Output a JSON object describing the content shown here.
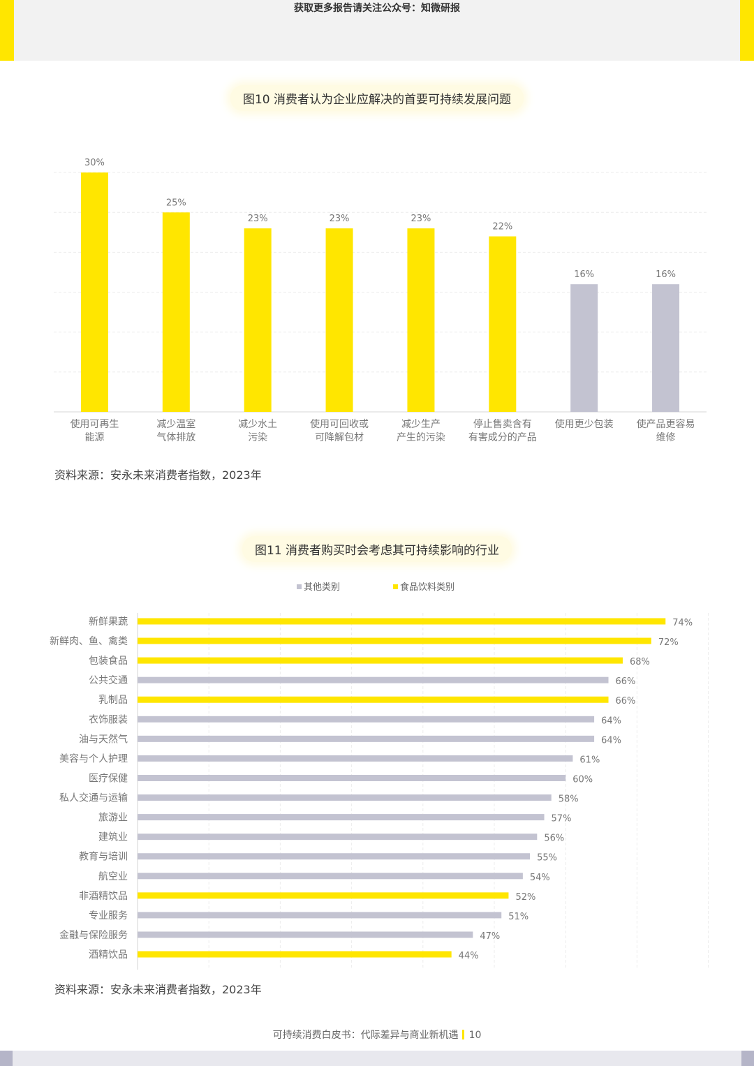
{
  "header": {
    "notice": "获取更多报告请关注公众号：知微研报"
  },
  "colors": {
    "accent": "#ffe600",
    "grey": "#c3c3d1",
    "band": "#f2f2f2"
  },
  "figure10": {
    "title": "图10 消费者认为企业应解决的首要可持续发展问题",
    "source": "资料来源：安永未来消费者指数，2023年"
  },
  "figure11": {
    "title": "图11 消费者购买时会考虑其可持续影响的行业",
    "legend": {
      "other": "其他类别",
      "food": "食品饮料类别"
    },
    "source": "资料来源：安永未来消费者指数，2023年"
  },
  "footer": {
    "text": "可持续消费白皮书：代际差异与商业新机遇",
    "page": "10"
  },
  "chart_data": [
    {
      "type": "bar",
      "categories": [
        [
          "使用可再生",
          "能源"
        ],
        [
          "减少温室",
          "气体排放"
        ],
        [
          "减少水土",
          "污染"
        ],
        [
          "使用可回收或",
          "可降解包材"
        ],
        [
          "减少生产",
          "产生的污染"
        ],
        [
          "停止售卖含有",
          "有害成分的产品"
        ],
        [
          "使用更少包装"
        ],
        [
          "使产品更容易",
          "维修"
        ]
      ],
      "values": [
        30,
        25,
        23,
        23,
        23,
        22,
        16,
        16
      ],
      "value_labels": [
        "30%",
        "25%",
        "23%",
        "23%",
        "23%",
        "22%",
        "16%",
        "16%"
      ],
      "bar_colors": [
        "#ffe600",
        "#ffe600",
        "#ffe600",
        "#ffe600",
        "#ffe600",
        "#ffe600",
        "#c3c3d1",
        "#c3c3d1"
      ],
      "ylim": [
        0,
        35
      ],
      "grid": true
    },
    {
      "type": "bar",
      "orientation": "horizontal",
      "categories": [
        "新鲜果蔬",
        "新鲜肉、鱼、禽类",
        "包装食品",
        "公共交通",
        "乳制品",
        "衣饰服装",
        "油与天然气",
        "美容与个人护理",
        "医疗保健",
        "私人交通与运输",
        "旅游业",
        "建筑业",
        "教育与培训",
        "航空业",
        "非酒精饮品",
        "专业服务",
        "金融与保险服务",
        "酒精饮品"
      ],
      "values": [
        74,
        72,
        68,
        66,
        66,
        64,
        64,
        61,
        60,
        58,
        57,
        56,
        55,
        54,
        52,
        51,
        47,
        44
      ],
      "value_labels": [
        "74%",
        "72%",
        "68%",
        "66%",
        "66%",
        "64%",
        "64%",
        "61%",
        "60%",
        "58%",
        "57%",
        "56%",
        "55%",
        "54%",
        "52%",
        "51%",
        "47%",
        "44%"
      ],
      "group": [
        "food",
        "food",
        "food",
        "other",
        "food",
        "other",
        "other",
        "other",
        "other",
        "other",
        "other",
        "other",
        "other",
        "other",
        "food",
        "other",
        "other",
        "food"
      ],
      "series": [
        {
          "name": "其他类别",
          "key": "other",
          "color": "#c3c3d1"
        },
        {
          "name": "食品饮料类别",
          "key": "food",
          "color": "#ffe600"
        }
      ],
      "xlim": [
        0,
        80
      ],
      "grid": true,
      "legend_position": "top"
    }
  ]
}
